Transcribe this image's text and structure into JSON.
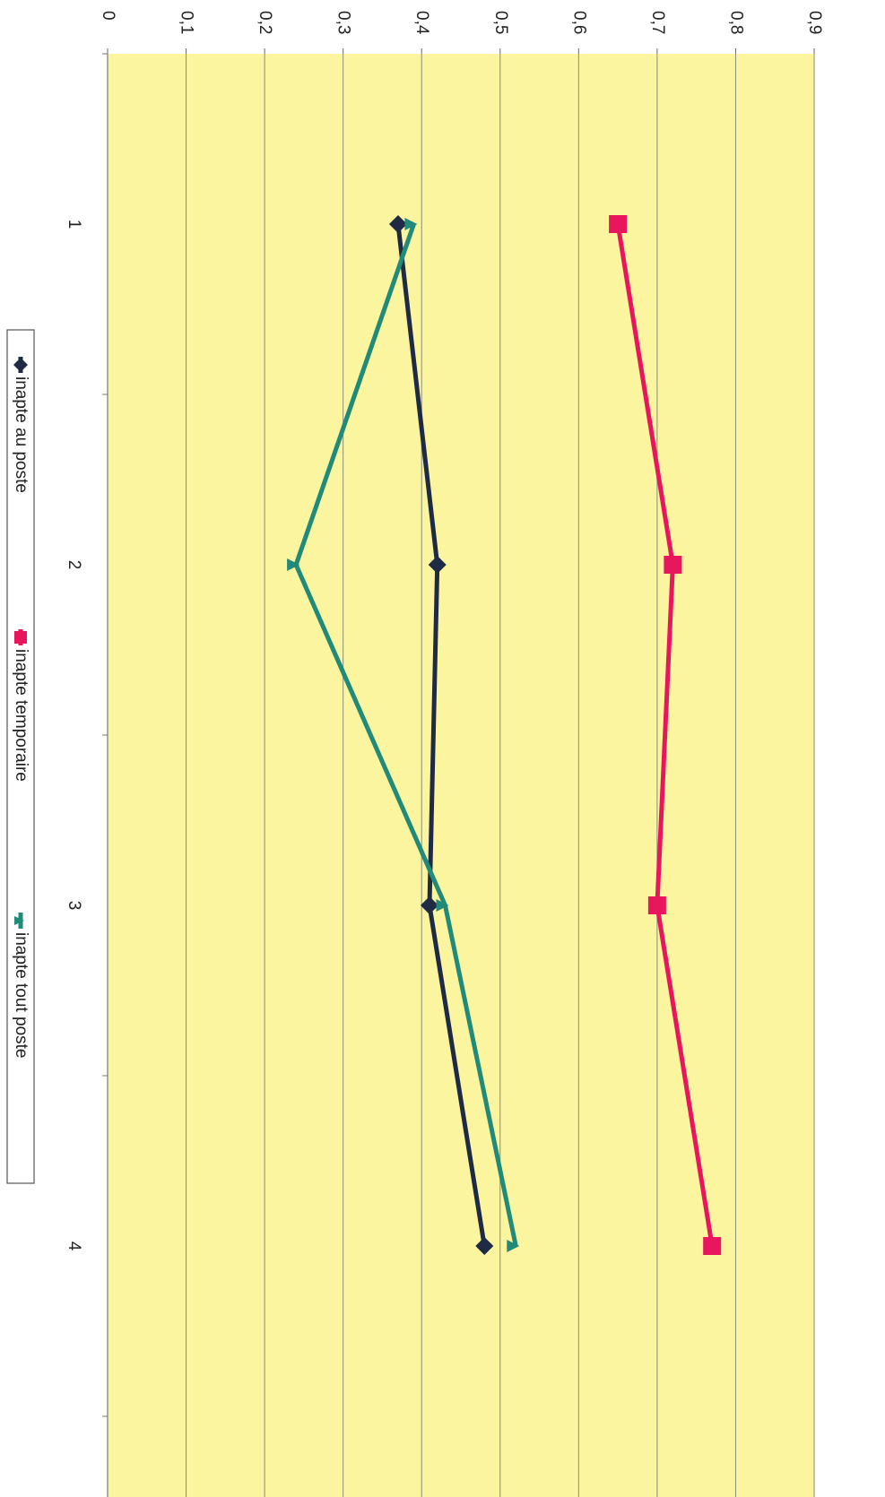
{
  "chart_data": {
    "type": "line",
    "orientation": "rotated-90-clockwise",
    "title": "",
    "xlabel": "",
    "ylabel": "",
    "categories": [
      "1",
      "2",
      "3",
      "4"
    ],
    "x_ticks": [
      "1",
      "2",
      "3",
      "4"
    ],
    "y_ticks": [
      "0",
      "0,1",
      "0,2",
      "0,3",
      "0,4",
      "0,5",
      "0,6",
      "0,7",
      "0,8",
      "0,9"
    ],
    "ylim": [
      0,
      0.9
    ],
    "grid": true,
    "legend_placement": "bottom",
    "plot_background": "#FBF5A0",
    "series": [
      {
        "name": "inapte au poste",
        "color": "#1F2A44",
        "marker": "diamond",
        "values": [
          0.37,
          0.42,
          0.41,
          0.48
        ]
      },
      {
        "name": "inapte temporaire",
        "color": "#E8175D",
        "marker": "square",
        "values": [
          0.65,
          0.72,
          0.7,
          0.77
        ]
      },
      {
        "name": "inapte tout poste",
        "color": "#218A78",
        "marker": "triangle",
        "values": [
          0.39,
          0.24,
          0.43,
          0.52
        ]
      }
    ]
  }
}
